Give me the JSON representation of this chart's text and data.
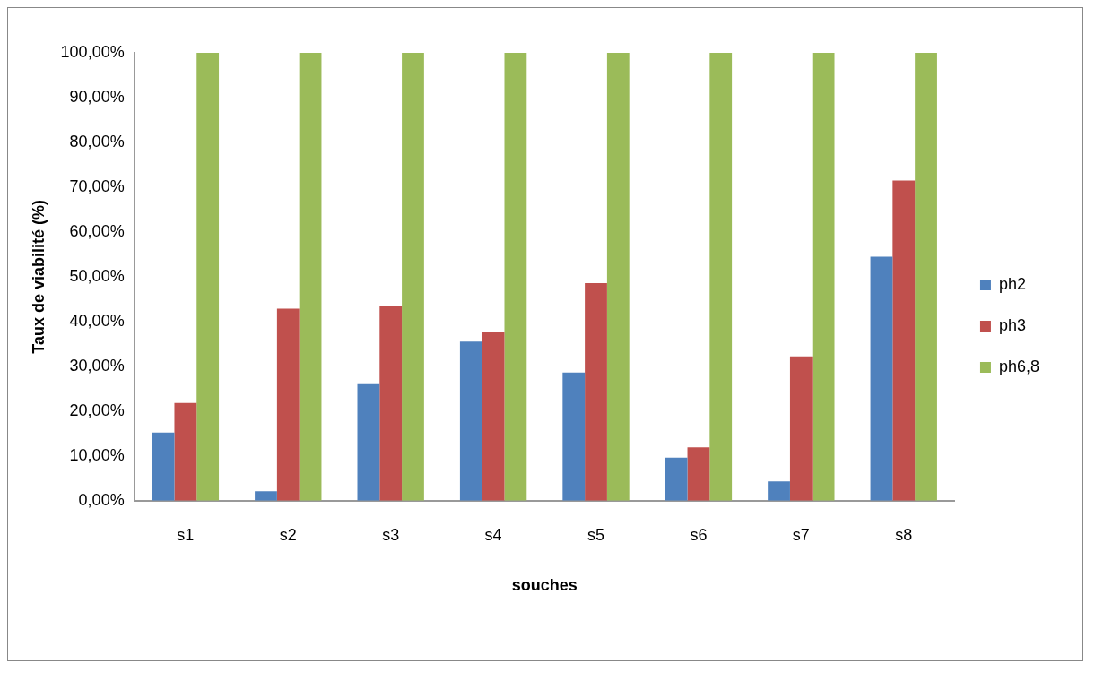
{
  "chart_data": {
    "type": "bar",
    "xlabel": "souches",
    "ylabel": "Taux de viabilité (%)",
    "categories": [
      "s1",
      "s2",
      "s3",
      "s4",
      "s5",
      "s6",
      "s7",
      "s8"
    ],
    "series": [
      {
        "name": "ph2",
        "color": "#4f81bd",
        "values": [
          15.2,
          2.1,
          26.2,
          35.5,
          28.6,
          9.6,
          4.3,
          54.5
        ]
      },
      {
        "name": "ph3",
        "color": "#c0504d",
        "values": [
          21.8,
          42.9,
          43.5,
          37.8,
          48.6,
          11.9,
          32.2,
          71.5
        ]
      },
      {
        "name": "ph6,8",
        "color": "#9bbb59",
        "values": [
          100,
          100,
          100,
          100,
          100,
          100,
          100,
          100
        ]
      }
    ],
    "ylim": [
      0,
      100
    ],
    "yticks": [
      {
        "value": 0,
        "label": "0,00%"
      },
      {
        "value": 10,
        "label": "10,00%"
      },
      {
        "value": 20,
        "label": "20,00%"
      },
      {
        "value": 30,
        "label": "30,00%"
      },
      {
        "value": 40,
        "label": "40,00%"
      },
      {
        "value": 50,
        "label": "50,00%"
      },
      {
        "value": 60,
        "label": "60,00%"
      },
      {
        "value": 70,
        "label": "70,00%"
      },
      {
        "value": 80,
        "label": "80,00%"
      },
      {
        "value": 90,
        "label": "90,00%"
      },
      {
        "value": 100,
        "label": "100,00%"
      }
    ],
    "grid": false,
    "legend": "right"
  }
}
